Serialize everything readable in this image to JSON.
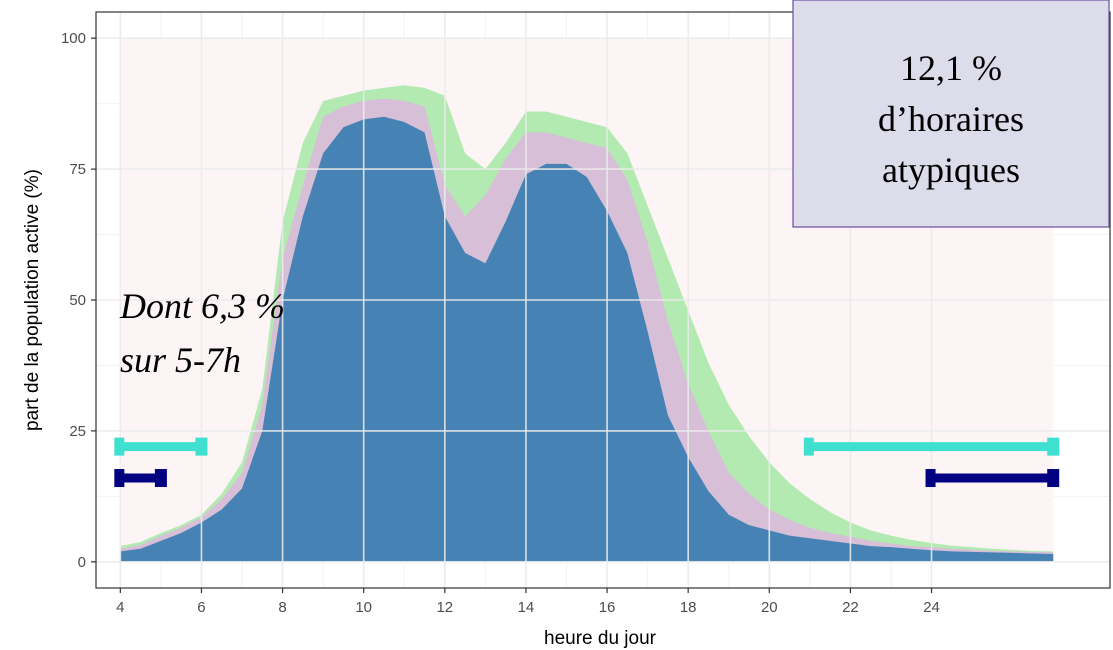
{
  "chart_data": {
    "type": "area",
    "title": "",
    "xlabel": "heure du jour",
    "ylabel": "part de la population active (%)",
    "xlim": [
      3.4,
      28.4
    ],
    "ylim": [
      -5,
      105
    ],
    "x_ticks": [
      4,
      6,
      8,
      10,
      12,
      14,
      16,
      18,
      20,
      22,
      24
    ],
    "y_ticks": [
      0,
      25,
      50,
      75,
      100
    ],
    "grid": true,
    "shaded_range": {
      "x": [
        4,
        27
      ],
      "y": [
        0,
        100
      ],
      "color": "#fdf5f5"
    },
    "x": [
      4,
      4.5,
      5,
      5.5,
      6,
      6.5,
      7,
      7.5,
      8,
      8.5,
      9,
      9.5,
      10,
      10.5,
      11,
      11.5,
      12,
      12.5,
      13,
      13.5,
      14,
      14.5,
      15,
      15.5,
      16,
      16.5,
      17,
      17.5,
      18,
      18.5,
      19,
      19.5,
      20,
      20.5,
      21,
      21.5,
      22,
      22.5,
      23,
      23.5,
      24,
      24.5,
      25,
      25.5,
      26,
      26.5,
      27
    ],
    "series": [
      {
        "color": "#4682b4",
        "values": [
          2,
          2.5,
          4,
          5.5,
          7.5,
          10,
          14,
          25,
          50,
          66,
          78,
          83,
          84.5,
          85,
          84,
          82,
          66,
          59,
          57,
          65,
          74,
          76,
          76,
          73.5,
          67,
          59,
          44,
          28,
          20,
          13.5,
          9,
          7,
          6,
          5,
          4.5,
          4,
          3.5,
          3,
          2.8,
          2.5,
          2.2,
          2,
          1.9,
          1.8,
          1.7,
          1.6,
          1.5
        ]
      },
      {
        "color": "#d8bfd8",
        "values": [
          2.5,
          3.2,
          5,
          6.5,
          8.5,
          12,
          17,
          30,
          58,
          72,
          85,
          87,
          88,
          88.5,
          88,
          87,
          72,
          66,
          70,
          77,
          82,
          82,
          81,
          80,
          79,
          73,
          61,
          46,
          34,
          25,
          17,
          13,
          10,
          8,
          6.5,
          5.5,
          4.8,
          4,
          3.5,
          3,
          2.8,
          2.5,
          2.3,
          2.1,
          2,
          1.9,
          1.8
        ]
      },
      {
        "color": "#b2eab2",
        "values": [
          3,
          3.8,
          5.5,
          7,
          9,
          13,
          19,
          33,
          65,
          80,
          88,
          89,
          90,
          90.5,
          91,
          90.5,
          89,
          78,
          75,
          80,
          86,
          86,
          85,
          84,
          83,
          78,
          68,
          58,
          48,
          38,
          30,
          24,
          19,
          15,
          12,
          9.5,
          7.5,
          6,
          5,
          4.2,
          3.6,
          3.1,
          2.8,
          2.5,
          2.3,
          2.1,
          2
        ]
      }
    ],
    "segments": [
      {
        "color": "#40e0d0",
        "x": [
          4,
          6
        ],
        "y": 22
      },
      {
        "color": "#000080",
        "x": [
          4,
          5
        ],
        "y": 16
      },
      {
        "color": "#40e0d0",
        "x": [
          21,
          27
        ],
        "y": 22
      },
      {
        "color": "#000080",
        "x": [
          24,
          27
        ],
        "y": 16
      }
    ],
    "annotations": {
      "note_line1": "Dont 6,3 %",
      "note_line2": "sur 5-7h",
      "box_line1": "12,1 %",
      "box_line2": "d’horaires",
      "box_line3": "atypiques",
      "box_fill": "#dcdceb",
      "box_border": "#6a4c9c"
    }
  }
}
